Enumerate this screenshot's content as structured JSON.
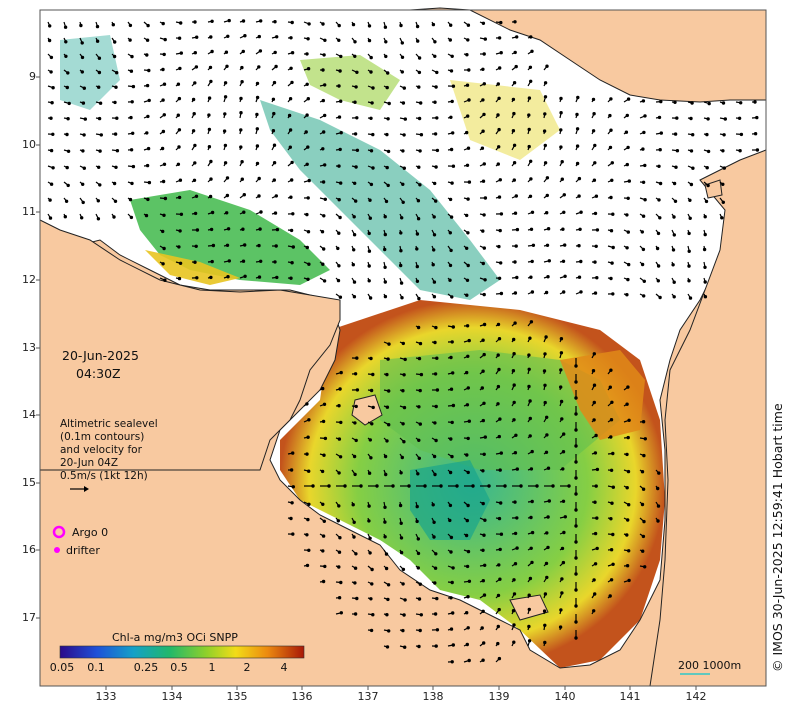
{
  "map": {
    "date_line": "20-Jun-2025",
    "time_line": "04:30Z",
    "info_lines": [
      "Altimetric sealevel",
      "(0.1m contours)",
      "and velocity for",
      "20-Jun 04Z",
      "0.5m/s (1kt 12h)"
    ],
    "y_ticks": [
      "9",
      "10",
      "11",
      "12",
      "13",
      "14",
      "15",
      "16",
      "17"
    ],
    "x_ticks": [
      "133",
      "134",
      "135",
      "136",
      "137",
      "138",
      "139",
      "140",
      "141",
      "142"
    ],
    "copyright": "© IMOS 30-Jun-2025 12:59:41 Hobart time",
    "legend": {
      "argo": "Argo 0",
      "drifter": "drifter"
    },
    "colorbar": {
      "title": "Chl-a mg/m3 OCi SNPP",
      "ticks": [
        "0.05",
        "0.1",
        "0.25",
        "0.5",
        "1",
        "2",
        "4"
      ]
    },
    "scale": "200  1000m",
    "colors": {
      "land": "#f8c9a0",
      "ocean_nodata": "#ffffff",
      "arrows": "#000000",
      "argo": "#ff00ff"
    }
  }
}
